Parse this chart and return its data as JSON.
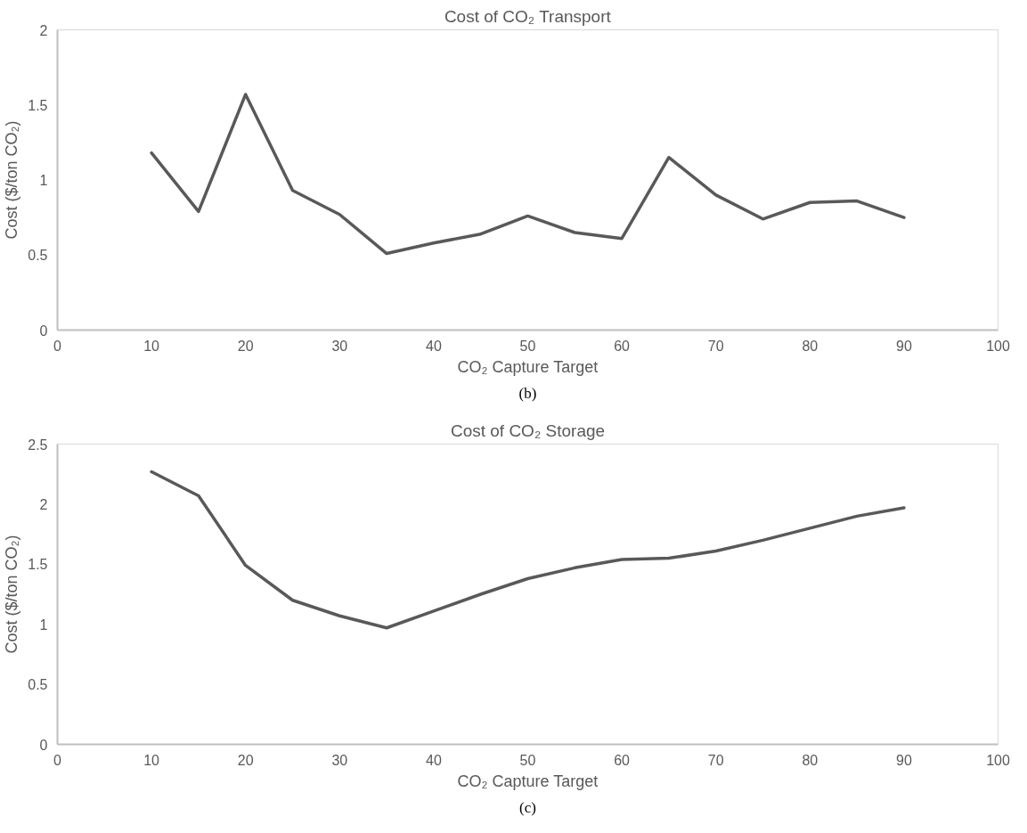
{
  "chart_data": [
    {
      "type": "line",
      "title": "Cost of CO₂ Transport",
      "xlabel": "CO₂ Capture Target",
      "ylabel": "Cost ($/ton CO₂)",
      "annotations": [
        "(b)"
      ],
      "x": [
        10,
        15,
        20,
        25,
        30,
        35,
        40,
        45,
        50,
        55,
        60,
        65,
        70,
        75,
        80,
        85,
        90
      ],
      "series": [
        {
          "color": "#595959",
          "values": [
            1.18,
            0.79,
            1.57,
            0.93,
            0.77,
            0.51,
            0.58,
            0.64,
            0.76,
            0.65,
            0.61,
            1.15,
            0.9,
            0.74,
            0.85,
            0.86,
            0.75
          ]
        }
      ],
      "xlim": [
        0,
        100
      ],
      "xticks": [
        0,
        10,
        20,
        30,
        40,
        50,
        60,
        70,
        80,
        90,
        100
      ],
      "ylim": [
        0,
        2
      ],
      "yticks": [
        0,
        0.5,
        1,
        1.5,
        2
      ],
      "grid": false,
      "marker": "none",
      "line_style": "solid"
    },
    {
      "type": "line",
      "title": "Cost of CO₂ Storage",
      "xlabel": "CO₂ Capture Target",
      "ylabel": "Cost ($/ton CO₂)",
      "annotations": [
        "(c)"
      ],
      "x": [
        10,
        15,
        20,
        25,
        30,
        35,
        40,
        45,
        50,
        55,
        60,
        65,
        70,
        75,
        80,
        85,
        90
      ],
      "series": [
        {
          "color": "#595959",
          "values": [
            2.27,
            2.07,
            1.49,
            1.2,
            1.07,
            0.97,
            1.11,
            1.25,
            1.38,
            1.47,
            1.54,
            1.55,
            1.61,
            1.7,
            1.8,
            1.9,
            1.97
          ]
        }
      ],
      "xlim": [
        0,
        100
      ],
      "xticks": [
        0,
        10,
        20,
        30,
        40,
        50,
        60,
        70,
        80,
        90,
        100
      ],
      "ylim": [
        0,
        2.5
      ],
      "yticks": [
        0,
        0.5,
        1,
        1.5,
        2,
        2.5
      ],
      "grid": false,
      "marker": "none",
      "line_style": "solid"
    }
  ]
}
